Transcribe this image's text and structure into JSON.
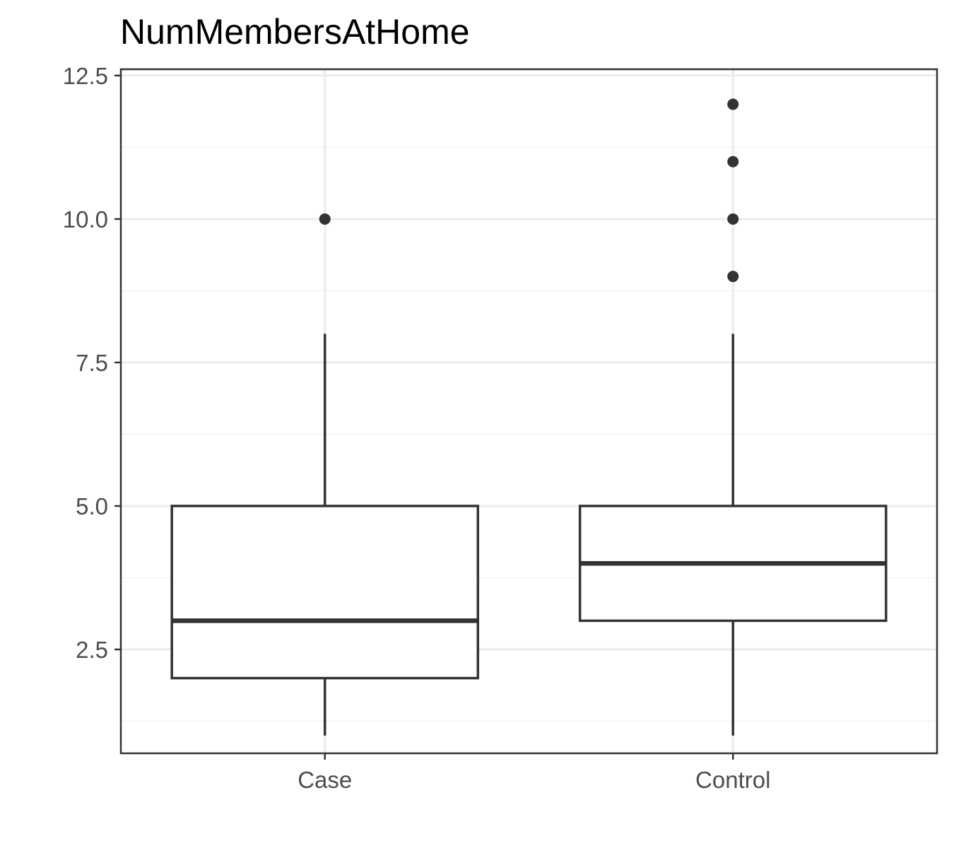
{
  "chart_data": {
    "type": "boxplot",
    "title": "NumMembersAtHome",
    "xlabel": "",
    "ylabel": "",
    "categories": [
      "Case",
      "Control"
    ],
    "ylim": [
      0.69,
      12.61
    ],
    "y_ticks": [
      2.5,
      5.0,
      7.5,
      10.0,
      12.5
    ],
    "y_tick_labels": [
      "2.5",
      "5.0",
      "7.5",
      "10.0",
      "12.5"
    ],
    "y_minor_ticks": [
      1.25,
      3.75,
      6.25,
      8.75,
      11.25
    ],
    "grid": true,
    "legend": "none",
    "boxes": [
      {
        "category": "Case",
        "min": 1,
        "q1": 2,
        "median": 3,
        "q3": 5,
        "max": 8,
        "outliers": [
          10
        ]
      },
      {
        "category": "Control",
        "min": 1,
        "q1": 3,
        "median": 4,
        "q3": 5,
        "max": 8,
        "outliers": [
          9,
          10,
          11,
          12
        ]
      }
    ]
  },
  "colors": {
    "box_stroke": "#333333",
    "box_fill": "#ffffff",
    "grid_major": "#ebebeb",
    "grid_minor": "#f2f2f2",
    "panel_border": "#333333",
    "tick_text": "#4d4d4d",
    "title": "#000000"
  }
}
